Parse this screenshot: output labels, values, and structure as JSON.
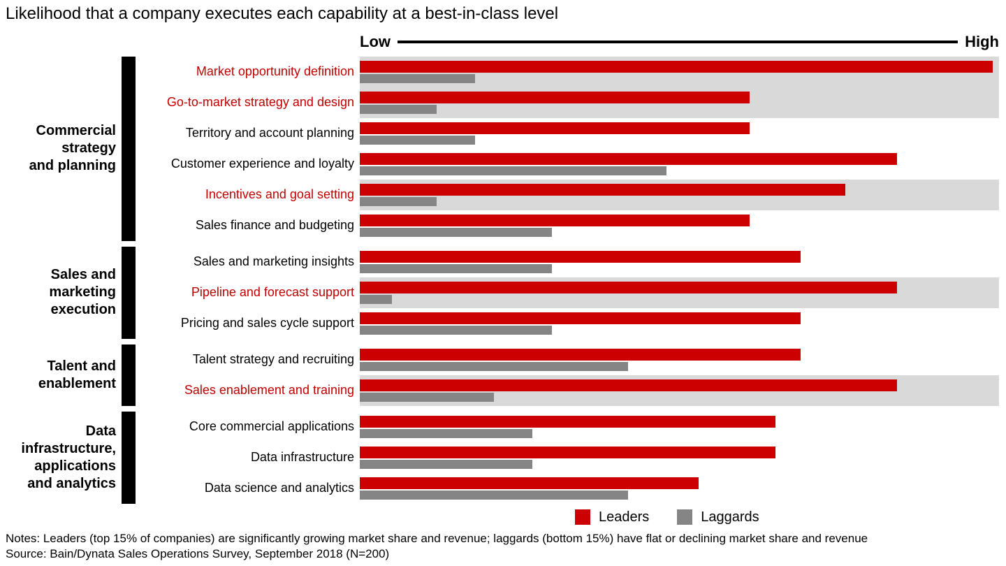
{
  "title": "Likelihood that a company executes each capability at a best-in-class level",
  "axis": {
    "low_label": "Low",
    "high_label": "High"
  },
  "chart_data": {
    "type": "bar",
    "orientation": "horizontal",
    "title": "Likelihood that a company executes each capability at a best-in-class level",
    "series_names": [
      "Leaders",
      "Laggards"
    ],
    "value_scale": {
      "min": 0,
      "max": 100,
      "axis_labels": [
        "Low",
        "High"
      ]
    },
    "colors": {
      "leaders": "#cc0000",
      "laggards": "#858585",
      "highlight_row_bg": "#d9d9d9",
      "highlight_label": "#c00000",
      "group_bar": "#000000"
    },
    "groups": [
      {
        "label": "Commercial strategy and planning",
        "rows": [
          {
            "capability": "Market opportunity definition",
            "leaders": 99,
            "laggards": 18,
            "highlighted": true
          },
          {
            "capability": "Go-to-market strategy and design",
            "leaders": 61,
            "laggards": 12,
            "highlighted": true
          },
          {
            "capability": "Territory and account planning",
            "leaders": 61,
            "laggards": 18,
            "highlighted": false
          },
          {
            "capability": "Customer experience and loyalty",
            "leaders": 84,
            "laggards": 48,
            "highlighted": false
          },
          {
            "capability": "Incentives and goal setting",
            "leaders": 76,
            "laggards": 12,
            "highlighted": true
          },
          {
            "capability": "Sales finance and budgeting",
            "leaders": 61,
            "laggards": 30,
            "highlighted": false
          }
        ]
      },
      {
        "label": "Sales and marketing execution",
        "rows": [
          {
            "capability": "Sales and marketing insights",
            "leaders": 69,
            "laggards": 30,
            "highlighted": false
          },
          {
            "capability": "Pipeline and forecast support",
            "leaders": 84,
            "laggards": 5,
            "highlighted": true
          },
          {
            "capability": "Pricing and sales cycle support",
            "leaders": 69,
            "laggards": 30,
            "highlighted": false
          }
        ]
      },
      {
        "label": "Talent and enablement",
        "rows": [
          {
            "capability": "Talent strategy and recruiting",
            "leaders": 69,
            "laggards": 42,
            "highlighted": false
          },
          {
            "capability": "Sales enablement and training",
            "leaders": 84,
            "laggards": 21,
            "highlighted": true
          }
        ]
      },
      {
        "label": "Data infrastructure, applications and analytics",
        "rows": [
          {
            "capability": "Core commercial applications",
            "leaders": 65,
            "laggards": 27,
            "highlighted": false
          },
          {
            "capability": "Data infrastructure",
            "leaders": 65,
            "laggards": 27,
            "highlighted": false
          },
          {
            "capability": "Data science and analytics",
            "leaders": 53,
            "laggards": 42,
            "highlighted": false
          }
        ]
      }
    ]
  },
  "legend": {
    "items": [
      {
        "label": "Leaders",
        "color": "#cc0000"
      },
      {
        "label": "Laggards",
        "color": "#858585"
      }
    ]
  },
  "footnotes": {
    "notes": "Notes: Leaders (top 15% of companies) are significantly growing market share and revenue; laggards (bottom 15%) have flat or declining market share and revenue",
    "source": "Source: Bain/Dynata Sales Operations Survey, September 2018 (N=200)"
  }
}
